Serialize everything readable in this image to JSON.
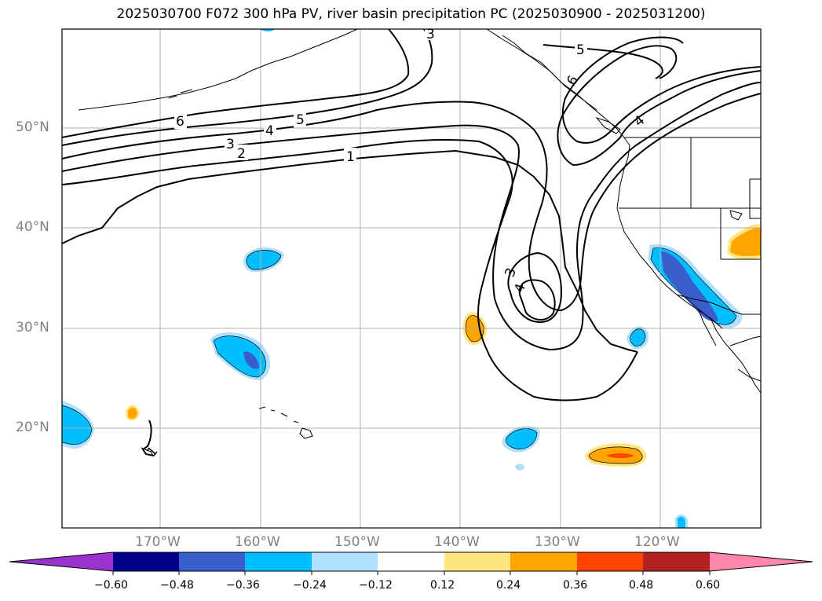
{
  "title": "2025030700 F072 300 hPa PV, river basin precipitation PC (2025030900 - 2025031200)",
  "lat_labels": [
    "50°N",
    "40°N",
    "30°N",
    "20°N"
  ],
  "lon_labels": [
    "170°W",
    "160°W",
    "150°W",
    "140°W",
    "130°W",
    "120°W"
  ],
  "map_extent": {
    "lon_min": -180,
    "lon_max": -110,
    "lat_min": 10,
    "lat_max": 60
  },
  "contour_labels": [
    "1",
    "2",
    "3",
    "4",
    "5",
    "6",
    "3",
    "5",
    "6",
    "4",
    "3",
    "4",
    "1"
  ],
  "colorbar": {
    "ticks": [
      "−0.60",
      "−0.48",
      "−0.36",
      "−0.24",
      "−0.12",
      "0.12",
      "0.24",
      "0.36",
      "0.48",
      "0.60"
    ],
    "colors": [
      "#9933cc",
      "#000088",
      "#3a5fcd",
      "#00bfff",
      "#b0e0ff",
      "#ffffff",
      "#ffe680",
      "#ffa500",
      "#ff4500",
      "#b22222",
      "#ff88aa"
    ],
    "extend": "both"
  },
  "colors": {
    "land_outline": "#000000",
    "grid": "#b0b0b0",
    "contour": "#000000",
    "label": "#808080"
  }
}
